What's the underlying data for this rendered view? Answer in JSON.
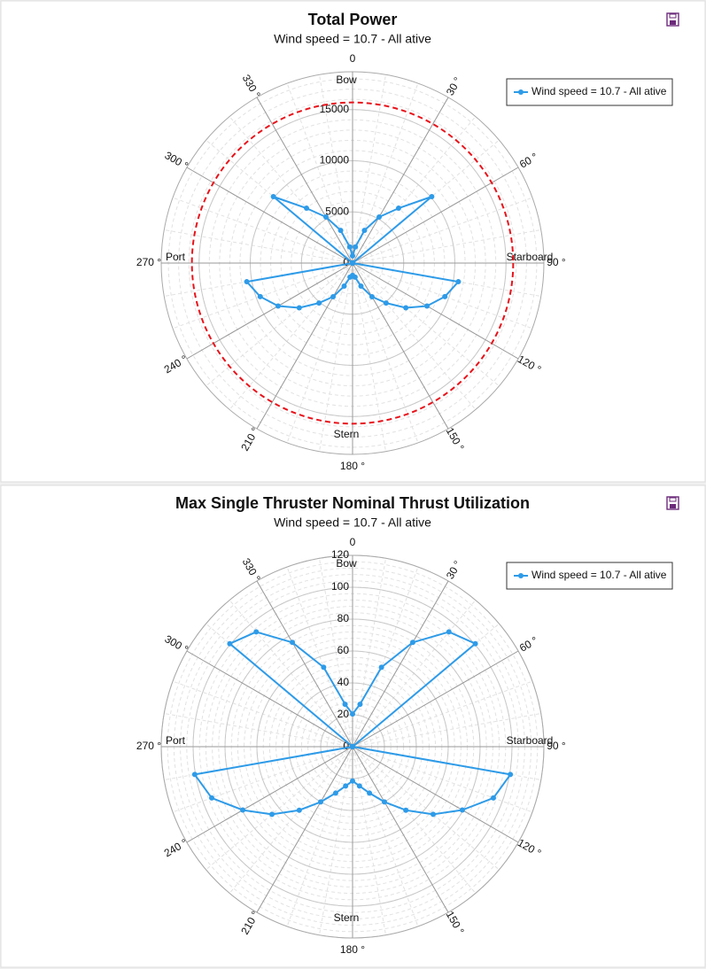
{
  "chart_data": [
    {
      "type": "polar",
      "title": "Total Power",
      "subtitle": "Wind speed = 10.7 - All ative",
      "theta": [
        0,
        10,
        20,
        30,
        40,
        50,
        60,
        70,
        80,
        90,
        100,
        110,
        120,
        130,
        140,
        150,
        160,
        170,
        180,
        190,
        200,
        210,
        220,
        230,
        240,
        250,
        260,
        270,
        280,
        290,
        300,
        310,
        320,
        330,
        340,
        350
      ],
      "series": [
        {
          "name": "Wind speed = 10.7 - All ative",
          "color": "#2e9be8",
          "values": [
            700,
            1600,
            3400,
            5200,
            7000,
            10100,
            0,
            0,
            0,
            0,
            10500,
            9600,
            8400,
            6800,
            5100,
            3800,
            2400,
            1400,
            1200,
            1400,
            2400,
            3800,
            5100,
            6800,
            8400,
            9600,
            10500,
            0,
            0,
            0,
            0,
            10100,
            7000,
            5200,
            3400,
            1600
          ]
        }
      ],
      "reference_circle": {
        "value": 15700,
        "color": "#e8131b"
      },
      "rlim": [
        0,
        18700
      ],
      "rticks": [
        0,
        5000,
        10000,
        15000
      ],
      "thetaticks": [
        0,
        {
          "value": 30,
          "label": "30 °"
        },
        {
          "value": 60,
          "label": "60 °"
        },
        {
          "value": 90,
          "label": "90 °"
        },
        {
          "value": 120,
          "label": "120 °"
        },
        {
          "value": 150,
          "label": "150 °"
        },
        {
          "value": 180,
          "label": "180 °"
        },
        {
          "value": 210,
          "label": "210 °"
        },
        {
          "value": 240,
          "label": "240 °"
        },
        {
          "value": 270,
          "label": "270 °"
        },
        {
          "value": 300,
          "label": "300 °"
        },
        {
          "value": 330,
          "label": "330 °"
        }
      ],
      "direction_labels": [
        {
          "value": 0,
          "label": "Bow"
        },
        {
          "value": 90,
          "label": "Starboard"
        },
        {
          "value": 180,
          "label": "Stern"
        },
        {
          "value": 270,
          "label": "Port"
        }
      ],
      "legend": "top-right"
    },
    {
      "type": "polar",
      "title": "Max Single Thruster Nominal Thrust Utilization",
      "subtitle": "Wind speed = 10.7 - All ative",
      "theta": [
        0,
        10,
        20,
        30,
        40,
        50,
        60,
        70,
        80,
        90,
        100,
        110,
        120,
        130,
        140,
        150,
        160,
        170,
        180,
        190,
        200,
        210,
        220,
        230,
        240,
        250,
        260,
        270,
        280,
        290,
        300,
        310,
        320,
        330,
        340,
        350
      ],
      "series": [
        {
          "name": "Wind speed = 10.7 - All ative",
          "color": "#2e9be8",
          "values": [
            20.5,
            27,
            53,
            75.5,
            94,
            100.5,
            0,
            0,
            0,
            0,
            100.5,
            94,
            79.5,
            66,
            52,
            40,
            31,
            25,
            21.5,
            25,
            31,
            40,
            52,
            66,
            79.5,
            94,
            100.5,
            0,
            0,
            0,
            0,
            100.5,
            94,
            75.5,
            53,
            27
          ]
        }
      ],
      "rlim": [
        0,
        120
      ],
      "rticks": [
        0,
        20,
        40,
        60,
        80,
        100,
        120
      ],
      "thetaticks": [
        0,
        {
          "value": 30,
          "label": "30 °"
        },
        {
          "value": 60,
          "label": "60 °"
        },
        {
          "value": 90,
          "label": "90 °"
        },
        {
          "value": 120,
          "label": "120 °"
        },
        {
          "value": 150,
          "label": "150 °"
        },
        {
          "value": 180,
          "label": "180 °"
        },
        {
          "value": 210,
          "label": "210 °"
        },
        {
          "value": 240,
          "label": "240 °"
        },
        {
          "value": 270,
          "label": "270 °"
        },
        {
          "value": 300,
          "label": "300 °"
        },
        {
          "value": 330,
          "label": "330 °"
        }
      ],
      "direction_labels": [
        {
          "value": 0,
          "label": "Bow"
        },
        {
          "value": 90,
          "label": "Starboard"
        },
        {
          "value": 180,
          "label": "Stern"
        },
        {
          "value": 270,
          "label": "Port"
        }
      ],
      "legend": "top-right"
    }
  ]
}
